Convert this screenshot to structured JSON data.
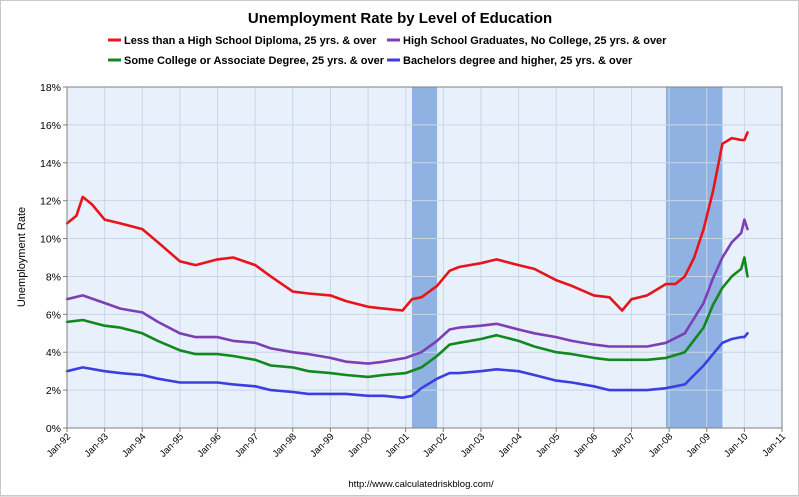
{
  "chart_data": {
    "type": "line",
    "title": "Unemployment Rate by Level of Education",
    "ylabel": "Unemployment Rate",
    "xlabel": "",
    "source": "http://www.calculatedriskblog.com/",
    "ylim": [
      0,
      18
    ],
    "yticks": [
      "0%",
      "2%",
      "4%",
      "6%",
      "8%",
      "10%",
      "12%",
      "14%",
      "16%",
      "18%"
    ],
    "xlim": [
      "1992-01",
      "2011-01"
    ],
    "xticks": [
      "Jan-92",
      "Jan-93",
      "Jan-94",
      "Jan-95",
      "Jan-96",
      "Jan-97",
      "Jan-98",
      "Jan-99",
      "Jan-00",
      "Jan-01",
      "Jan-02",
      "Jan-03",
      "Jan-04",
      "Jan-05",
      "Jan-06",
      "Jan-07",
      "Jan-08",
      "Jan-09",
      "Jan-10",
      "Jan-11"
    ],
    "grid": true,
    "legend_position": "top",
    "recessions": [
      {
        "start": "2001-03",
        "end": "2001-11"
      },
      {
        "start": "2007-12",
        "end": "2009-06"
      }
    ],
    "colors": {
      "plot_background": "#e8f1fb",
      "recession_band": "#8fb2e2",
      "grid": "#c9d6e6"
    },
    "series": [
      {
        "name": "Less than a High School Diploma, 25 yrs. & over",
        "color": "#e8141b",
        "points": [
          [
            "1992-01",
            10.8
          ],
          [
            "1992-04",
            11.2
          ],
          [
            "1992-06",
            12.2
          ],
          [
            "1992-09",
            11.8
          ],
          [
            "1993-01",
            11.0
          ],
          [
            "1993-06",
            10.8
          ],
          [
            "1994-01",
            10.5
          ],
          [
            "1994-06",
            9.8
          ],
          [
            "1995-01",
            8.8
          ],
          [
            "1995-06",
            8.6
          ],
          [
            "1996-01",
            8.9
          ],
          [
            "1996-06",
            9.0
          ],
          [
            "1997-01",
            8.6
          ],
          [
            "1997-06",
            8.0
          ],
          [
            "1998-01",
            7.2
          ],
          [
            "1998-06",
            7.1
          ],
          [
            "1999-01",
            7.0
          ],
          [
            "1999-06",
            6.7
          ],
          [
            "2000-01",
            6.4
          ],
          [
            "2000-06",
            6.3
          ],
          [
            "2000-12",
            6.2
          ],
          [
            "2001-03",
            6.8
          ],
          [
            "2001-06",
            6.9
          ],
          [
            "2001-11",
            7.5
          ],
          [
            "2002-03",
            8.3
          ],
          [
            "2002-06",
            8.5
          ],
          [
            "2003-01",
            8.7
          ],
          [
            "2003-06",
            8.9
          ],
          [
            "2004-01",
            8.6
          ],
          [
            "2004-06",
            8.4
          ],
          [
            "2005-01",
            7.8
          ],
          [
            "2005-06",
            7.5
          ],
          [
            "2006-01",
            7.0
          ],
          [
            "2006-06",
            6.9
          ],
          [
            "2006-10",
            6.2
          ],
          [
            "2007-01",
            6.8
          ],
          [
            "2007-06",
            7.0
          ],
          [
            "2007-12",
            7.6
          ],
          [
            "2008-03",
            7.6
          ],
          [
            "2008-06",
            8.0
          ],
          [
            "2008-09",
            9.0
          ],
          [
            "2008-12",
            10.5
          ],
          [
            "2009-03",
            12.5
          ],
          [
            "2009-06",
            15.0
          ],
          [
            "2009-09",
            15.3
          ],
          [
            "2009-12",
            15.2
          ],
          [
            "2010-01",
            15.2
          ],
          [
            "2010-02",
            15.6
          ]
        ]
      },
      {
        "name": "High School Graduates, No College, 25 yrs. & over",
        "color": "#7c3fb5",
        "points": [
          [
            "1992-01",
            6.8
          ],
          [
            "1992-06",
            7.0
          ],
          [
            "1993-01",
            6.6
          ],
          [
            "1993-06",
            6.3
          ],
          [
            "1994-01",
            6.1
          ],
          [
            "1994-06",
            5.6
          ],
          [
            "1995-01",
            5.0
          ],
          [
            "1995-06",
            4.8
          ],
          [
            "1996-01",
            4.8
          ],
          [
            "1996-06",
            4.6
          ],
          [
            "1997-01",
            4.5
          ],
          [
            "1997-06",
            4.2
          ],
          [
            "1998-01",
            4.0
          ],
          [
            "1998-06",
            3.9
          ],
          [
            "1999-01",
            3.7
          ],
          [
            "1999-06",
            3.5
          ],
          [
            "2000-01",
            3.4
          ],
          [
            "2000-06",
            3.5
          ],
          [
            "2001-01",
            3.7
          ],
          [
            "2001-06",
            4.0
          ],
          [
            "2001-11",
            4.6
          ],
          [
            "2002-03",
            5.2
          ],
          [
            "2002-06",
            5.3
          ],
          [
            "2003-01",
            5.4
          ],
          [
            "2003-06",
            5.5
          ],
          [
            "2004-01",
            5.2
          ],
          [
            "2004-06",
            5.0
          ],
          [
            "2005-01",
            4.8
          ],
          [
            "2005-06",
            4.6
          ],
          [
            "2006-01",
            4.4
          ],
          [
            "2006-06",
            4.3
          ],
          [
            "2007-01",
            4.3
          ],
          [
            "2007-06",
            4.3
          ],
          [
            "2007-12",
            4.5
          ],
          [
            "2008-06",
            5.0
          ],
          [
            "2008-12",
            6.6
          ],
          [
            "2009-03",
            7.9
          ],
          [
            "2009-06",
            9.0
          ],
          [
            "2009-09",
            9.8
          ],
          [
            "2009-12",
            10.3
          ],
          [
            "2010-01",
            11.0
          ],
          [
            "2010-02",
            10.5
          ]
        ]
      },
      {
        "name": "Some College or Associate Degree, 25 yrs. & over",
        "color": "#12881e",
        "points": [
          [
            "1992-01",
            5.6
          ],
          [
            "1992-06",
            5.7
          ],
          [
            "1993-01",
            5.4
          ],
          [
            "1993-06",
            5.3
          ],
          [
            "1994-01",
            5.0
          ],
          [
            "1994-06",
            4.6
          ],
          [
            "1995-01",
            4.1
          ],
          [
            "1995-06",
            3.9
          ],
          [
            "1996-01",
            3.9
          ],
          [
            "1996-06",
            3.8
          ],
          [
            "1997-01",
            3.6
          ],
          [
            "1997-06",
            3.3
          ],
          [
            "1998-01",
            3.2
          ],
          [
            "1998-06",
            3.0
          ],
          [
            "1999-01",
            2.9
          ],
          [
            "1999-06",
            2.8
          ],
          [
            "2000-01",
            2.7
          ],
          [
            "2000-06",
            2.8
          ],
          [
            "2001-01",
            2.9
          ],
          [
            "2001-06",
            3.2
          ],
          [
            "2001-11",
            3.8
          ],
          [
            "2002-03",
            4.4
          ],
          [
            "2002-06",
            4.5
          ],
          [
            "2003-01",
            4.7
          ],
          [
            "2003-06",
            4.9
          ],
          [
            "2004-01",
            4.6
          ],
          [
            "2004-06",
            4.3
          ],
          [
            "2005-01",
            4.0
          ],
          [
            "2005-06",
            3.9
          ],
          [
            "2006-01",
            3.7
          ],
          [
            "2006-06",
            3.6
          ],
          [
            "2007-01",
            3.6
          ],
          [
            "2007-06",
            3.6
          ],
          [
            "2007-12",
            3.7
          ],
          [
            "2008-06",
            4.0
          ],
          [
            "2008-12",
            5.3
          ],
          [
            "2009-03",
            6.5
          ],
          [
            "2009-06",
            7.4
          ],
          [
            "2009-09",
            8.0
          ],
          [
            "2009-12",
            8.4
          ],
          [
            "2010-01",
            9.0
          ],
          [
            "2010-02",
            8.0
          ]
        ]
      },
      {
        "name": "Bachelors degree and higher, 25 yrs. & over",
        "color": "#3b3fe0",
        "points": [
          [
            "1992-01",
            3.0
          ],
          [
            "1992-06",
            3.2
          ],
          [
            "1993-01",
            3.0
          ],
          [
            "1993-06",
            2.9
          ],
          [
            "1994-01",
            2.8
          ],
          [
            "1994-06",
            2.6
          ],
          [
            "1995-01",
            2.4
          ],
          [
            "1995-06",
            2.4
          ],
          [
            "1996-01",
            2.4
          ],
          [
            "1996-06",
            2.3
          ],
          [
            "1997-01",
            2.2
          ],
          [
            "1997-06",
            2.0
          ],
          [
            "1998-01",
            1.9
          ],
          [
            "1998-06",
            1.8
          ],
          [
            "1999-01",
            1.8
          ],
          [
            "1999-06",
            1.8
          ],
          [
            "2000-01",
            1.7
          ],
          [
            "2000-06",
            1.7
          ],
          [
            "2000-12",
            1.6
          ],
          [
            "2001-03",
            1.7
          ],
          [
            "2001-06",
            2.1
          ],
          [
            "2001-11",
            2.6
          ],
          [
            "2002-03",
            2.9
          ],
          [
            "2002-06",
            2.9
          ],
          [
            "2003-01",
            3.0
          ],
          [
            "2003-06",
            3.1
          ],
          [
            "2004-01",
            3.0
          ],
          [
            "2004-06",
            2.8
          ],
          [
            "2005-01",
            2.5
          ],
          [
            "2005-06",
            2.4
          ],
          [
            "2006-01",
            2.2
          ],
          [
            "2006-06",
            2.0
          ],
          [
            "2007-01",
            2.0
          ],
          [
            "2007-06",
            2.0
          ],
          [
            "2007-12",
            2.1
          ],
          [
            "2008-06",
            2.3
          ],
          [
            "2008-12",
            3.3
          ],
          [
            "2009-03",
            3.9
          ],
          [
            "2009-06",
            4.5
          ],
          [
            "2009-09",
            4.7
          ],
          [
            "2009-12",
            4.8
          ],
          [
            "2010-01",
            4.8
          ],
          [
            "2010-02",
            5.0
          ]
        ]
      }
    ]
  }
}
